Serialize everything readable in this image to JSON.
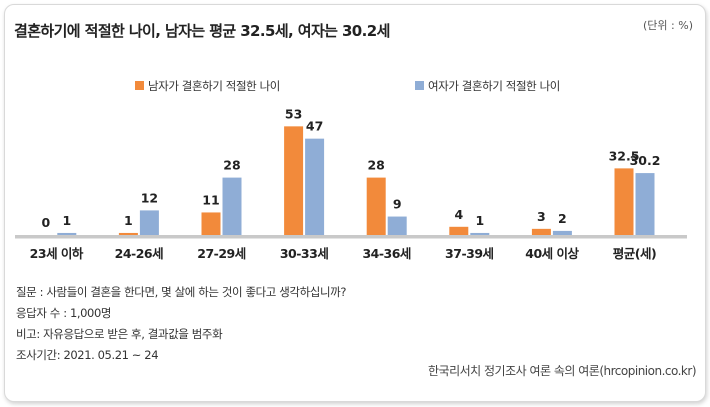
{
  "header": {
    "title": "결혼하기에 적절한 나이, 남자는 평균 32.5세, 여자는 30.2세",
    "unit": "(단위 : %)"
  },
  "chart_data": {
    "type": "bar",
    "title": "결혼하기에 적절한 나이, 남자는 평균 32.5세, 여자는 30.2세",
    "unit": "(단위 : %)",
    "categories": [
      "23세 이하",
      "24-26세",
      "27-29세",
      "30-33세",
      "34-36세",
      "37-39세",
      "40세 이상",
      "평균(세)"
    ],
    "series": [
      {
        "name": "남자가 결혼하기 적절한 나이",
        "color": "#f28a3b",
        "values": [
          0,
          1,
          11,
          53,
          28,
          4,
          3,
          32.5
        ],
        "labels": [
          "0",
          "1",
          "11",
          "53",
          "28",
          "4",
          "3",
          "32.5"
        ]
      },
      {
        "name": "여자가 결혼하기 적절한 나이",
        "color": "#8fadd6",
        "values": [
          1,
          12,
          28,
          47,
          9,
          1,
          2,
          30.2
        ],
        "labels": [
          "1",
          "12",
          "28",
          "47",
          "9",
          "1",
          "2",
          "30.2"
        ]
      }
    ],
    "ylim": [
      0,
      60
    ],
    "grid": false,
    "legend": "top"
  },
  "notes": {
    "question": "질문 : 사람들이 결혼을 한다면, 몇 살에 하는 것이 좋다고 생각하십니까?",
    "respondents": "응답자 수 : 1,000명",
    "remark": "비고: 자유응답으로 받은 후, 결과값을 범주화",
    "period": "조사기간: 2021. 05.21 ~ 24"
  },
  "source": "한국리서치 정기조사 여론 속의 여론(hrcopinion.co.kr)"
}
